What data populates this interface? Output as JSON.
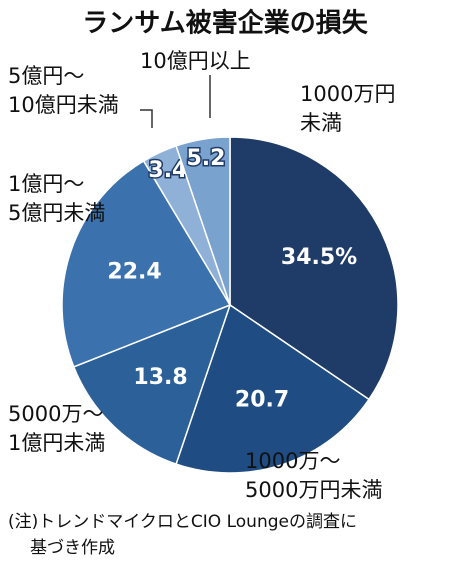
{
  "chart_data": {
    "type": "pie",
    "title": "ランサム被害企業の損失",
    "categories": [
      [
        "1000万円",
        "未満"
      ],
      [
        "1000万〜",
        "5000万円未満"
      ],
      [
        "5000万〜",
        "1億円未満"
      ],
      [
        "1億円〜",
        "5億円未満"
      ],
      [
        "5億円〜",
        "10億円未満"
      ],
      [
        "10億円以上"
      ]
    ],
    "values": [
      34.5,
      20.7,
      13.8,
      22.4,
      3.4,
      5.2
    ],
    "value_labels": [
      "34.5%",
      "20.7",
      "13.8",
      "22.4",
      "3.4",
      "5.2"
    ],
    "colors": [
      "#1f3b68",
      "#1f4c82",
      "#2b6099",
      "#3b72ad",
      "#8fb1d8",
      "#7aa2cf"
    ],
    "note": [
      "(注)トレンドマイクロとCIO Loungeの調査に",
      "基づき作成"
    ]
  }
}
